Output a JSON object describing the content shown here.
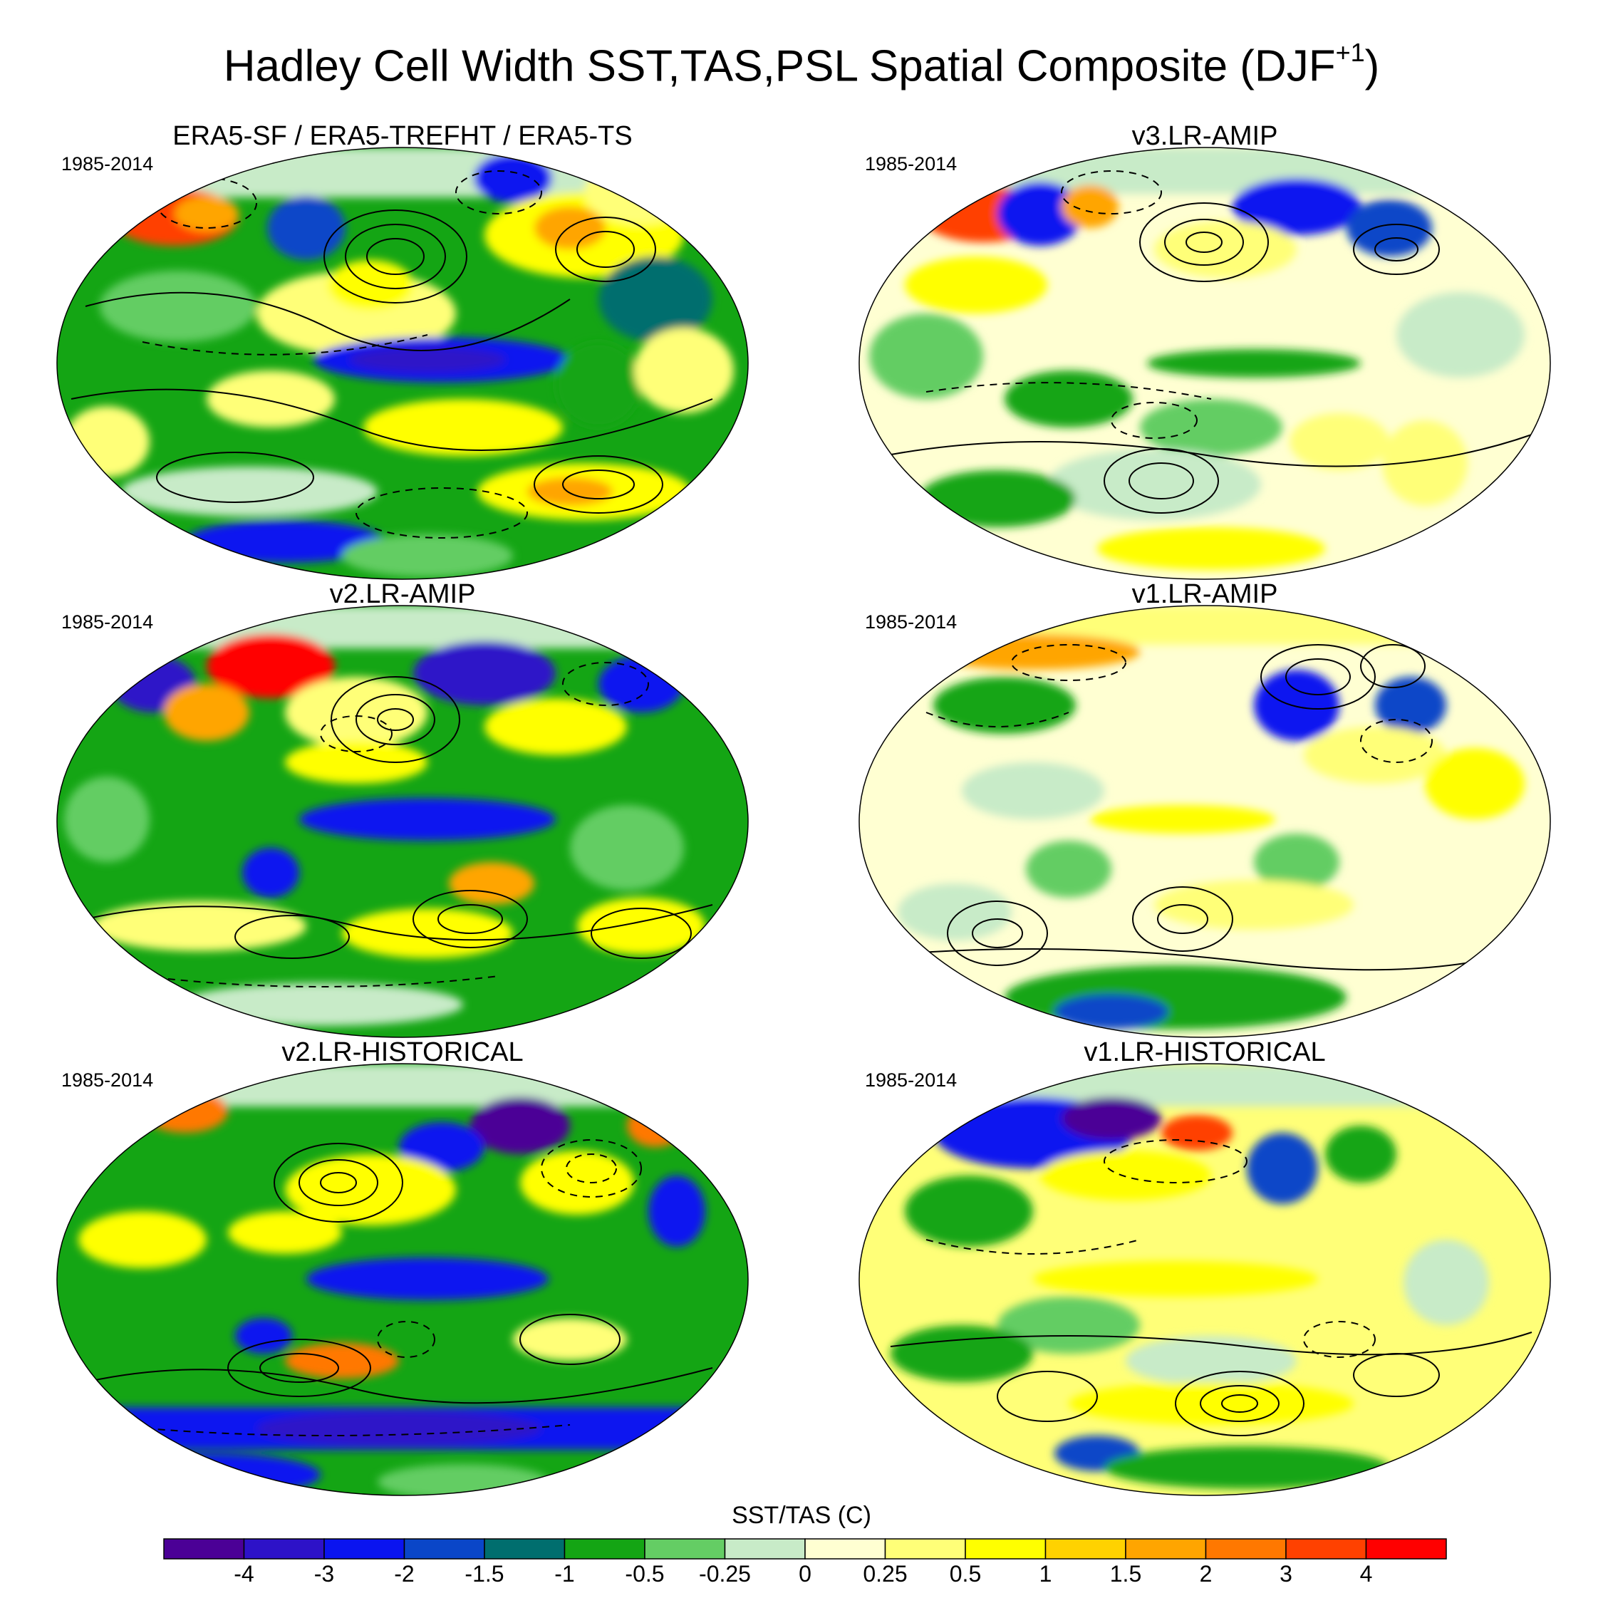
{
  "title": {
    "main": "Hadley Cell Width SST,TAS,PSL Spatial Composite (DJF",
    "superscript": "+1",
    "close": ")"
  },
  "panels": [
    {
      "title": "ERA5-SF / ERA5-TREFHT / ERA5-TS",
      "period": "1985-2014"
    },
    {
      "title": "v3.LR-AMIP",
      "period": "1985-2014"
    },
    {
      "title": "v2.LR-AMIP",
      "period": "1985-2014"
    },
    {
      "title": "v1.LR-AMIP",
      "period": "1985-2014"
    },
    {
      "title": "v2.LR-HISTORICAL",
      "period": "1985-2014"
    },
    {
      "title": "v1.LR-HISTORICAL",
      "period": "1985-2014"
    }
  ],
  "colorbar": {
    "title": "SST/TAS (C)",
    "tick_labels": [
      "-4",
      "-3",
      "-2",
      "-1.5",
      "-1",
      "-0.5",
      "-0.25",
      "0",
      "0.25",
      "0.5",
      "1",
      "1.5",
      "2",
      "3",
      "4"
    ],
    "colors": [
      "#4b0096",
      "#2d12c8",
      "#0a14f0",
      "#0a46c8",
      "#006e6e",
      "#14a514",
      "#64cd64",
      "#c8ebc8",
      "#ffffd2",
      "#ffff78",
      "#ffff00",
      "#ffd200",
      "#ffa500",
      "#ff7800",
      "#ff4100",
      "#ff0000"
    ]
  }
}
